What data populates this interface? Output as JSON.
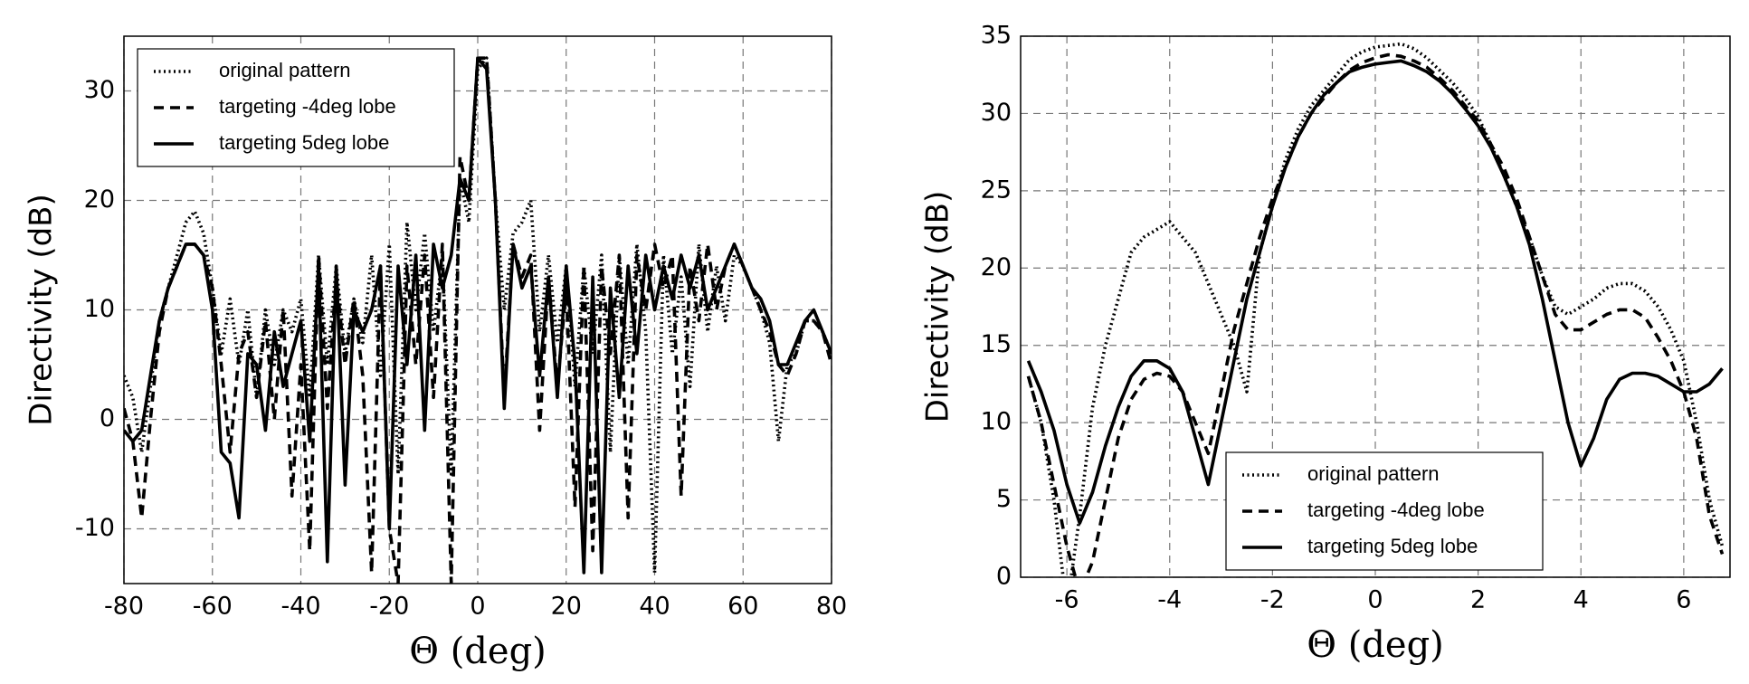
{
  "chart_data": [
    {
      "type": "line",
      "xlabel": "Θ (deg)",
      "ylabel": "Directivity (dB)",
      "xlim": [
        -80,
        80
      ],
      "ylim": [
        -15,
        35
      ],
      "xticks": [
        -80,
        -60,
        -40,
        -20,
        0,
        20,
        40,
        60,
        80
      ],
      "yticks": [
        -10,
        0,
        10,
        20,
        30
      ],
      "grid": true,
      "legend": "upper left",
      "x": [
        -80,
        -78,
        -76,
        -74,
        -72,
        -70,
        -68,
        -66,
        -64,
        -62,
        -60,
        -58,
        -56,
        -54,
        -52,
        -50,
        -48,
        -46,
        -44,
        -42,
        -40,
        -38,
        -36,
        -34,
        -32,
        -30,
        -28,
        -26,
        -24,
        -22,
        -20,
        -18,
        -16,
        -14,
        -12,
        -10,
        -8,
        -6,
        -4,
        -2,
        0,
        2,
        4,
        6,
        8,
        10,
        12,
        14,
        16,
        18,
        20,
        22,
        24,
        26,
        28,
        30,
        32,
        34,
        36,
        38,
        40,
        42,
        44,
        46,
        48,
        50,
        52,
        54,
        56,
        58,
        60,
        62,
        64,
        66,
        68,
        70,
        72,
        74,
        76,
        78,
        80
      ],
      "series": [
        {
          "name": "original pattern",
          "color": "#000000",
          "style": "dotted",
          "values": [
            4,
            2,
            -3,
            3,
            9,
            12,
            15,
            18,
            19,
            17,
            12,
            6,
            11,
            5,
            10,
            2,
            10,
            5,
            10,
            8,
            11,
            2,
            15,
            5,
            14,
            6,
            11,
            7,
            15,
            4,
            16,
            -5,
            18,
            10,
            17,
            8,
            15,
            -5,
            22,
            18,
            32,
            33,
            20,
            10,
            17,
            18,
            20,
            8,
            15,
            7,
            14,
            3,
            14,
            6,
            15,
            -3,
            15,
            5,
            16,
            8,
            -14,
            15,
            6,
            13,
            3,
            16,
            8,
            14,
            9,
            15,
            14,
            12,
            10,
            7,
            -2,
            5,
            6,
            9,
            9,
            8,
            6
          ]
        },
        {
          "name": "targeting -4deg lobe",
          "color": "#000000",
          "style": "dashed",
          "values": [
            1,
            -2,
            -9,
            0,
            8,
            12,
            14,
            16,
            16,
            15,
            12,
            5,
            -3,
            6,
            8,
            2,
            9,
            0,
            10,
            -7,
            5,
            -12,
            15,
            1,
            13,
            5,
            11,
            4,
            -14,
            14,
            -10,
            -15,
            14,
            5,
            15,
            2,
            16,
            -15,
            24,
            20,
            33,
            33,
            20,
            2,
            16,
            13,
            15,
            -1,
            13,
            3,
            12,
            -8,
            14,
            -12,
            14,
            6,
            15,
            -9,
            15,
            10,
            16,
            12,
            15,
            -7,
            14,
            9,
            16,
            10,
            14,
            16,
            14,
            12,
            10,
            8,
            5,
            4,
            6,
            9,
            9,
            8,
            5
          ]
        },
        {
          "name": "targeting 5deg lobe",
          "color": "#000000",
          "style": "solid",
          "values": [
            -1,
            -2,
            -1,
            4,
            9,
            12,
            14,
            16,
            16,
            15,
            10,
            -3,
            -4,
            -9,
            6,
            5,
            -1,
            8,
            3,
            6,
            9,
            -2,
            14,
            -13,
            14,
            -6,
            10,
            8,
            10,
            14,
            -10,
            14,
            5,
            15,
            -1,
            16,
            12,
            15,
            22,
            20,
            33,
            32,
            20,
            1,
            16,
            12,
            14,
            4,
            13,
            2,
            14,
            5,
            -14,
            13,
            -14,
            12,
            2,
            14,
            6,
            15,
            10,
            14,
            11,
            15,
            12,
            15,
            10,
            12,
            14,
            16,
            14,
            12,
            11,
            9,
            5,
            5,
            7,
            9,
            10,
            8,
            6
          ]
        }
      ]
    },
    {
      "type": "line",
      "xlabel": "Θ (deg)",
      "ylabel": "Directivity (dB)",
      "xlim": [
        -6.9,
        6.9
      ],
      "ylim": [
        0,
        35
      ],
      "xticks": [
        -6,
        -4,
        -2,
        0,
        2,
        4,
        6
      ],
      "yticks": [
        0,
        5,
        10,
        15,
        20,
        25,
        30,
        35
      ],
      "grid": true,
      "legend": "lower center",
      "x": [
        -6.75,
        -6.5,
        -6.25,
        -6,
        -5.75,
        -5.5,
        -5.25,
        -5,
        -4.75,
        -4.5,
        -4.25,
        -4,
        -3.75,
        -3.5,
        -3.25,
        -3,
        -2.75,
        -2.5,
        -2.25,
        -2,
        -1.75,
        -1.5,
        -1.25,
        -1,
        -0.75,
        -0.5,
        -0.25,
        0,
        0.25,
        0.5,
        0.75,
        1,
        1.25,
        1.5,
        1.75,
        2,
        2.25,
        2.5,
        2.75,
        3,
        3.25,
        3.5,
        3.75,
        4,
        4.25,
        4.5,
        4.75,
        5,
        5.25,
        5.5,
        5.75,
        6,
        6.25,
        6.5,
        6.75
      ],
      "series": [
        {
          "name": "original pattern",
          "color": "#000000",
          "style": "dotted",
          "values": [
            13,
            10,
            5,
            -2,
            4,
            11,
            15,
            18,
            21,
            22,
            22.5,
            23,
            22,
            21,
            19,
            17,
            15,
            12,
            21,
            24,
            27,
            29,
            30.5,
            31.5,
            32.5,
            33.5,
            34,
            34.3,
            34.4,
            34.5,
            34.2,
            33.6,
            32.8,
            32,
            31,
            29.8,
            28,
            26,
            24,
            22,
            19.5,
            17.5,
            17,
            17.5,
            18,
            18.7,
            19,
            19,
            18.5,
            17.5,
            16,
            14,
            10,
            5,
            2
          ]
        },
        {
          "name": "targeting -4deg lobe",
          "color": "#000000",
          "style": "dashed",
          "values": [
            13,
            10,
            6,
            2,
            -1,
            1,
            5,
            9,
            11.5,
            12.8,
            13.2,
            13,
            12,
            10,
            8,
            12,
            16,
            19,
            22,
            24.5,
            26.5,
            28.5,
            30,
            31,
            32,
            32.8,
            33.3,
            33.6,
            33.8,
            33.7,
            33.4,
            33,
            32.3,
            31.5,
            30.5,
            29.5,
            28,
            26.5,
            24.5,
            22,
            19.5,
            17,
            16,
            16,
            16.5,
            17,
            17.3,
            17.3,
            16.8,
            15.5,
            14,
            12,
            9,
            4,
            1.5
          ]
        },
        {
          "name": "targeting 5deg lobe",
          "color": "#000000",
          "style": "solid",
          "values": [
            14,
            12,
            9.5,
            6,
            3.5,
            5.5,
            8.5,
            11,
            13,
            14,
            14,
            13.5,
            12,
            9,
            6,
            10,
            14,
            18,
            21,
            24,
            26.5,
            28.5,
            30,
            31.2,
            32,
            32.7,
            33,
            33.2,
            33.3,
            33.4,
            33.1,
            32.7,
            32.1,
            31.3,
            30.3,
            29.2,
            27.8,
            26,
            24,
            21.5,
            18,
            14,
            10,
            7.2,
            9,
            11.5,
            12.8,
            13.2,
            13.2,
            13,
            12.5,
            12,
            12,
            12.5,
            13.5
          ]
        }
      ]
    }
  ]
}
